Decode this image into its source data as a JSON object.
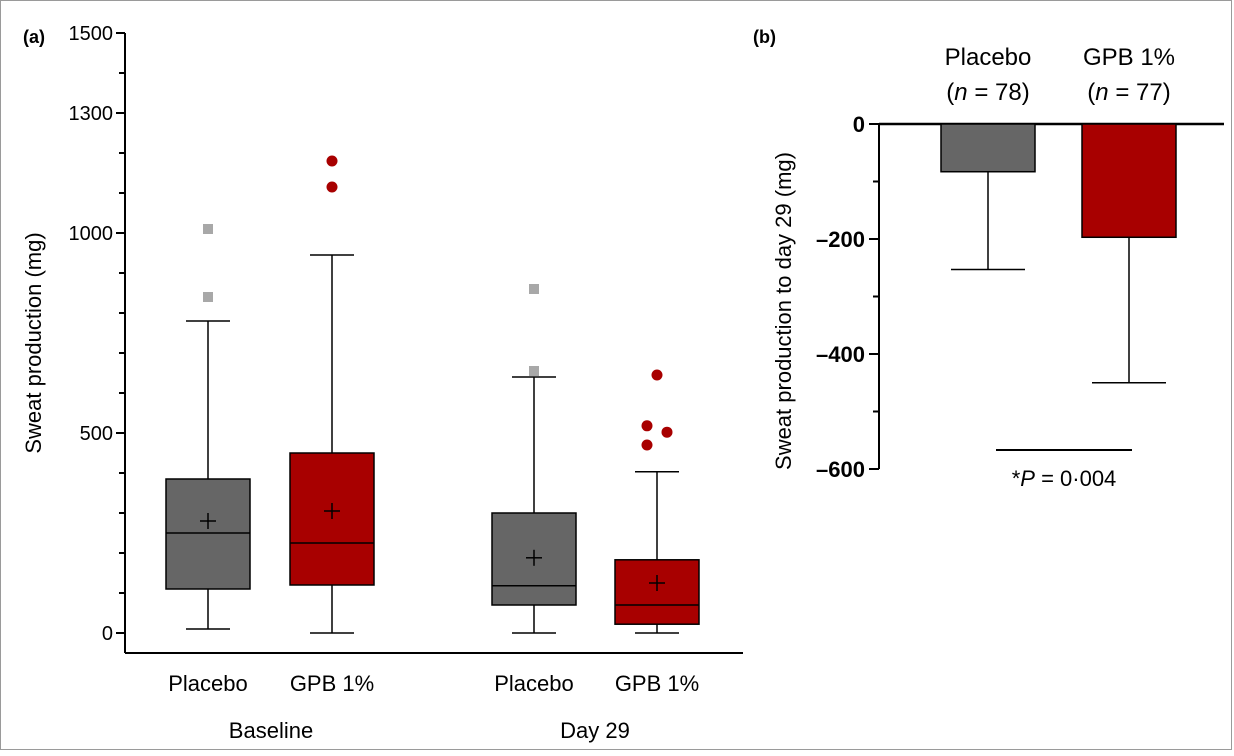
{
  "chart_data": [
    {
      "panel_label": "(a)",
      "type": "box",
      "ylabel": "Sweat production (mg)",
      "ylim": [
        0,
        1500
      ],
      "yticks": [
        0,
        500,
        1000,
        1300,
        1500
      ],
      "groups": [
        "Baseline",
        "Day 29"
      ],
      "categories": [
        "Placebo",
        "GPB 1%",
        "Placebo",
        "GPB 1%"
      ],
      "colors": {
        "Placebo": "#666666",
        "GPB 1%": "#a80000"
      },
      "outlier_colors": {
        "Placebo": "#a8a8a8",
        "GPB 1%": "#a80000"
      },
      "boxes": [
        {
          "group": "Baseline",
          "category": "Placebo",
          "whisker_low": 10,
          "q1": 110,
          "median": 250,
          "q3": 385,
          "whisker_high": 780,
          "mean": 280,
          "outliers": [
            840,
            1010
          ]
        },
        {
          "group": "Baseline",
          "category": "GPB 1%",
          "whisker_low": 0,
          "q1": 120,
          "median": 225,
          "q3": 450,
          "whisker_high": 945,
          "mean": 305,
          "outliers": [
            1115,
            1180
          ]
        },
        {
          "group": "Day 29",
          "category": "Placebo",
          "whisker_low": 0,
          "q1": 70,
          "median": 118,
          "q3": 300,
          "whisker_high": 640,
          "mean": 188,
          "outliers": [
            655,
            860
          ]
        },
        {
          "group": "Day 29",
          "category": "GPB 1%",
          "whisker_low": 0,
          "q1": 22,
          "median": 70,
          "q3": 183,
          "whisker_high": 403,
          "mean": 125,
          "outliers": [
            470,
            502,
            518,
            645
          ]
        }
      ]
    },
    {
      "panel_label": "(b)",
      "type": "bar",
      "ylabel": "Sweat production to day 29 (mg)",
      "ylim": [
        -600,
        0
      ],
      "yticks": [
        0,
        -200,
        -400,
        -600
      ],
      "tick_labels": [
        "0",
        "–200",
        "–400",
        "–600"
      ],
      "categories": [
        "Placebo",
        "GPB 1%"
      ],
      "n_labels": [
        [
          "(",
          "n",
          " = 78)"
        ],
        [
          "(",
          "n",
          " = 77)"
        ]
      ],
      "values": [
        -83,
        -197
      ],
      "error_low": [
        -253,
        -450
      ],
      "colors": [
        "#666666",
        "#a80000"
      ],
      "annotation": {
        "star": "*",
        "p": "P",
        "rest": " = 0·004"
      }
    }
  ]
}
